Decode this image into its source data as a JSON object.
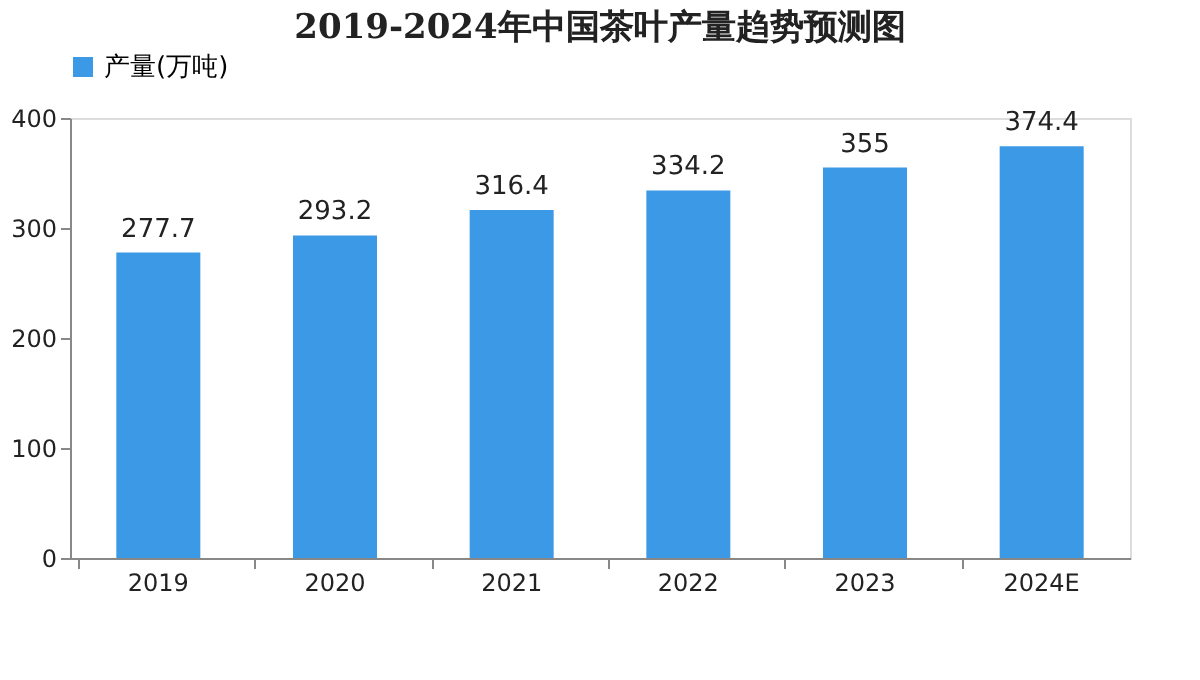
{
  "chart_data": {
    "type": "bar",
    "title": "2019-2024年中国茶叶产量趋势预测图",
    "categories": [
      "2019",
      "2020",
      "2021",
      "2022",
      "2023",
      "2024E"
    ],
    "series": [
      {
        "name": "产量(万吨)",
        "color": "#3b99e6",
        "values": [
          277.7,
          293.2,
          316.4,
          334.2,
          355,
          374.4
        ]
      }
    ],
    "ylim": [
      0,
      400
    ],
    "yticks": [
      0,
      100,
      200,
      300,
      400
    ],
    "grid": false,
    "legend": "top",
    "data_labels": true
  }
}
